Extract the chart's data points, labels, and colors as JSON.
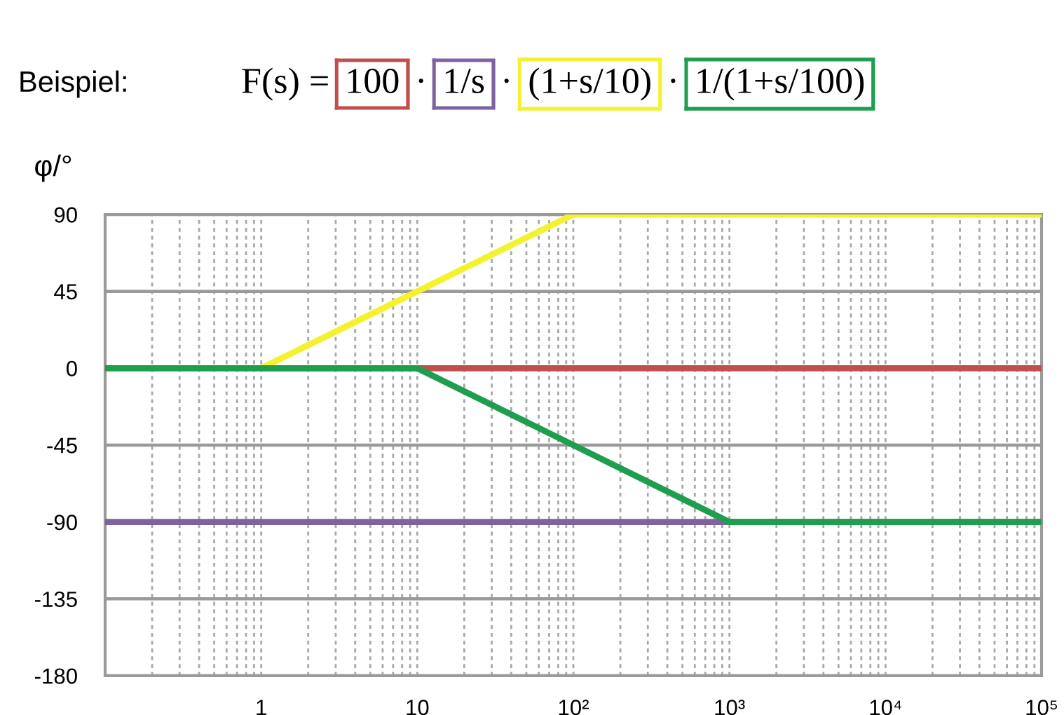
{
  "chart_data": {
    "type": "line",
    "title": "Beispiel:",
    "ylabel": "φ/°",
    "annotations": [
      "F(s) =",
      "·",
      "·",
      "·"
    ],
    "log": "x",
    "xlim": [
      0.1,
      100000
    ],
    "xticks": [
      1,
      10,
      {
        "value": 100,
        "label": "10²"
      },
      {
        "value": 1000,
        "label": "10³"
      },
      {
        "value": 10000,
        "label": "10⁴"
      },
      {
        "value": 100000,
        "label": "10⁵"
      }
    ],
    "ylim": [
      -180,
      90
    ],
    "yticks": [
      90,
      45,
      0,
      -45,
      -90,
      -135,
      -180
    ],
    "grid": true,
    "legend": "top",
    "line_style": "solid",
    "series": [
      {
        "name": "100",
        "color": "#c0504d",
        "x": [
          0.1,
          100000
        ],
        "values": [
          0,
          0
        ]
      },
      {
        "name": "1/s",
        "color": "#7f62a0",
        "x": [
          0.1,
          100000
        ],
        "values": [
          -90,
          -90
        ]
      },
      {
        "name": "(1+s/10)",
        "color": "#f2f230",
        "x": [
          0.1,
          1,
          100,
          100000
        ],
        "values": [
          0,
          0,
          90,
          90
        ]
      },
      {
        "name": "1/(1+s/100)",
        "color": "#1f9e4f",
        "x": [
          0.1,
          10,
          1000,
          100000
        ],
        "values": [
          0,
          0,
          -90,
          -90
        ]
      }
    ]
  }
}
